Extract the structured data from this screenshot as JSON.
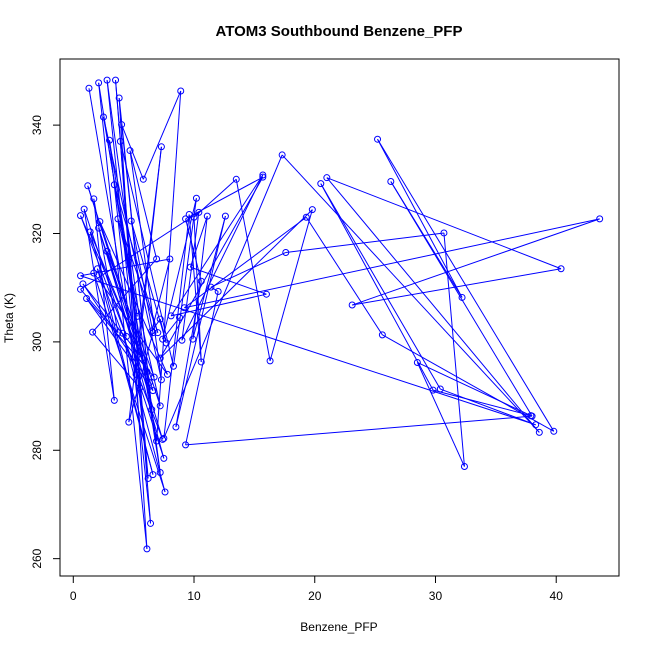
{
  "chart_data": {
    "type": "line",
    "title": "ATOM3 Southbound Benzene_PFP",
    "xlabel": "Benzene_PFP",
    "ylabel": "Theta (K)",
    "xlim": [
      -1.1,
      45.2
    ],
    "ylim": [
      256.8,
      352.2
    ],
    "x_ticks": [
      0,
      10,
      20,
      30,
      40
    ],
    "y_ticks": [
      260,
      280,
      300,
      320,
      340
    ],
    "grid": false,
    "colors": {
      "series": "#0000ff",
      "axes": "#000000",
      "background": "#ffffff"
    },
    "series": [
      {
        "points": [
          [
            1.3,
            346.8
          ],
          [
            5.5,
            291.5
          ],
          [
            1.6,
            301.8
          ],
          [
            6.9,
            315.3
          ],
          [
            4.7,
            335.3
          ],
          [
            7.3,
            293.0
          ],
          [
            2.5,
            341.5
          ],
          [
            5.3,
            304.7
          ],
          [
            3.0,
            337.2
          ],
          [
            6.4,
            266.5
          ],
          [
            3.5,
            348.3
          ],
          [
            6.2,
            274.8
          ],
          [
            2.8,
            348.3
          ],
          [
            7.2,
            275.9
          ],
          [
            2.1,
            347.8
          ],
          [
            6.1,
            261.8
          ],
          [
            3.8,
            345.0
          ],
          [
            6.5,
            287.5
          ],
          [
            4.0,
            340.1
          ],
          [
            5.8,
            330.0
          ],
          [
            8.9,
            346.3
          ],
          [
            6.9,
            281.7
          ],
          [
            3.4,
            329.0
          ],
          [
            7.0,
            301.7
          ],
          [
            3.7,
            322.7
          ],
          [
            7.2,
            288.2
          ],
          [
            2.2,
            322.2
          ],
          [
            7.8,
            294.0
          ],
          [
            1.7,
            312.7
          ],
          [
            7.6,
            272.3
          ],
          [
            4.1,
            301.6
          ],
          [
            7.5,
            278.5
          ],
          [
            2.8,
            316.7
          ],
          [
            6.7,
            293.5
          ],
          [
            1.1,
            308.0
          ],
          [
            6.6,
            291.0
          ],
          [
            1.2,
            328.8
          ],
          [
            6.1,
            294.5
          ],
          [
            1.4,
            320.3
          ],
          [
            6.6,
            275.5
          ],
          [
            2.0,
            313.5
          ],
          [
            7.4,
            282.0
          ],
          [
            2.1,
            321.0
          ],
          [
            6.3,
            292.5
          ],
          [
            0.8,
            310.7
          ],
          [
            5.7,
            297.0
          ],
          [
            0.6,
            323.3
          ],
          [
            4.4,
            301.0
          ],
          [
            0.9,
            324.5
          ],
          [
            3.4,
            289.2
          ],
          [
            1.7,
            326.4
          ],
          [
            3.7,
            301.7
          ],
          [
            0.6,
            309.7
          ],
          [
            10.4,
            323.9
          ],
          [
            9.0,
            300.3
          ],
          [
            15.7,
            330.8
          ],
          [
            8.1,
            304.8
          ],
          [
            16.0,
            308.8
          ],
          [
            9.7,
            313.8
          ],
          [
            11.1,
            323.2
          ],
          [
            9.9,
            300.5
          ],
          [
            12.6,
            323.2
          ],
          [
            8.5,
            284.3
          ],
          [
            10.6,
            311.2
          ],
          [
            9.3,
            322.7
          ],
          [
            15.7,
            330.4
          ],
          [
            7.2,
            297.0
          ],
          [
            19.8,
            324.4
          ],
          [
            16.3,
            296.5
          ],
          [
            13.5,
            330.0
          ],
          [
            10.0,
            323.0
          ],
          [
            10.6,
            296.3
          ],
          [
            9.6,
            323.5
          ],
          [
            7.5,
            282.2
          ],
          [
            17.3,
            334.5
          ],
          [
            38.6,
            283.3
          ],
          [
            21.0,
            330.3
          ],
          [
            40.4,
            313.5
          ],
          [
            23.1,
            306.8
          ],
          [
            43.6,
            322.7
          ],
          [
            9.2,
            306.3
          ],
          [
            19.3,
            323.0
          ],
          [
            25.6,
            301.3
          ],
          [
            39.8,
            283.5
          ],
          [
            25.2,
            337.4
          ],
          [
            32.2,
            308.2
          ],
          [
            26.3,
            329.6
          ],
          [
            38.0,
            286.3
          ],
          [
            9.3,
            281.0
          ],
          [
            12.0,
            309.3
          ],
          [
            11.4,
            310.1
          ],
          [
            17.6,
            316.5
          ],
          [
            30.7,
            320.1
          ],
          [
            32.4,
            277.0
          ],
          [
            28.5,
            296.2
          ],
          [
            37.9,
            286.4
          ],
          [
            29.8,
            291.1
          ],
          [
            20.5,
            329.2
          ],
          [
            30.4,
            291.3
          ],
          [
            38.3,
            284.7
          ],
          [
            0.6,
            312.2
          ],
          [
            8.0,
            315.3
          ],
          [
            6.5,
            302.0
          ],
          [
            7.2,
            304.2
          ],
          [
            7.7,
            299.8
          ],
          [
            4.8,
            322.3
          ],
          [
            6.6,
            301.7
          ],
          [
            4.6,
            285.2
          ],
          [
            7.3,
            336.0
          ],
          [
            5.2,
            294.0
          ],
          [
            4.6,
            315.6
          ],
          [
            3.9,
            337.0
          ],
          [
            8.3,
            295.5
          ],
          [
            10.2,
            326.5
          ],
          [
            7.4,
            300.5
          ],
          [
            8.8,
            304.5
          ]
        ]
      }
    ]
  }
}
